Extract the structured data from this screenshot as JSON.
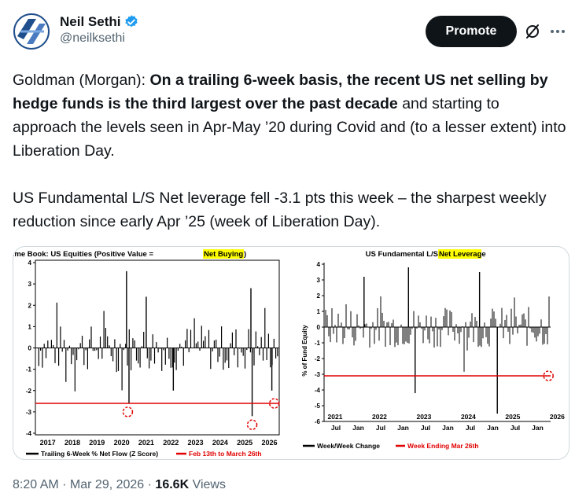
{
  "author": {
    "name": "Neil Sethi",
    "handle": "@neilksethi"
  },
  "actions": {
    "promote_label": "Promote"
  },
  "icons": {
    "avatar": "neil-sethi-logo",
    "verified": "verified-badge-icon",
    "grok": "grok-icon",
    "more": "more-icon"
  },
  "post": {
    "p1_lead": "Goldman (Morgan): ",
    "p1_bold": "On a trailing 6-week basis, the recent US net selling by hedge funds is the third largest over the past decade",
    "p1_rest": " and starting to approach the levels seen in Apr-May ’20 during Covid and (to a lesser extent) into Liberation Day.",
    "p2": "US Fundamental L/S Net leverage fell -3.1 pts this week – the sharpest weekly reduction since early Apr ’25 (week of Liberation Day)."
  },
  "meta": {
    "time": "8:20 AM",
    "sep1": " · ",
    "date": "Mar 29, 2026",
    "sep2": " · ",
    "views": "16.6K",
    "views_label": " Views"
  },
  "colors": {
    "accent_verified": "#1d9bf0",
    "highlight": "#ffff00",
    "reference_line": "#e00000"
  },
  "chart_data": [
    {
      "type": "bar",
      "title_main": "Prime Book: US Equities (Positive Value = ",
      "title_highlight": "Net Buying",
      "title_end": ")",
      "x_ticks": [
        "2017",
        "2018",
        "2019",
        "2020",
        "2021",
        "2022",
        "2023",
        "2024",
        "2025",
        "2026"
      ],
      "y_ticks": [
        "4",
        "3",
        "2",
        "1",
        "0",
        "-1",
        "-2",
        "-3",
        "-4"
      ],
      "ylim": [
        -4,
        4
      ],
      "xlim": [
        2016.5,
        2026.4
      ],
      "reference_value": -2.6,
      "highlight_points": [
        [
          2020.25,
          -3.0
        ],
        [
          2025.3,
          -3.6
        ],
        [
          2026.2,
          -2.6
        ]
      ],
      "legend": [
        {
          "name": "Trailing 6-Week % Net Flow (Z Score)",
          "color": "#000000"
        },
        {
          "name": "Feb 13th to March 26th",
          "color": "#e00000"
        }
      ]
    },
    {
      "type": "bar",
      "title_main": "US Fundamental L/S ",
      "title_highlight": "Net Leverage",
      "ylabel": "% of Fund Equity",
      "y_ticks": [
        "4",
        "3",
        "2",
        "1",
        "0",
        "-1",
        "-2",
        "-3",
        "-4",
        "-5",
        "-6"
      ],
      "ylim": [
        -6,
        4
      ],
      "xlim": [
        2021.0,
        2026.1
      ],
      "x_years": [
        "2021",
        "2022",
        "2023",
        "2024",
        "2025",
        "2026"
      ],
      "x_months": [
        "Jul",
        "Jan",
        "Jul",
        "Jan",
        "Jul",
        "Jan",
        "Jul",
        "Jan",
        "Jul",
        "Jan"
      ],
      "reference_value": -3.1,
      "highlight_points": [
        [
          2026.05,
          -3.1
        ]
      ],
      "legend": [
        {
          "name": "Week/Week Change",
          "color": "#000000"
        },
        {
          "name": "Week Ending Mar 26th",
          "color": "#e00000"
        }
      ]
    }
  ]
}
